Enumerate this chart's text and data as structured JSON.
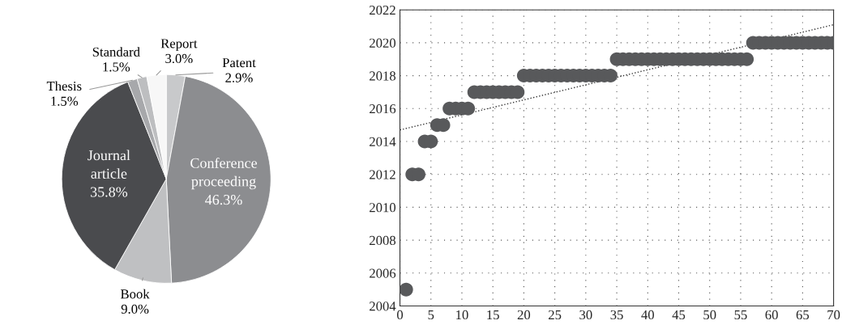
{
  "chart_data": [
    {
      "type": "pie",
      "categories": [
        "Patent",
        "Conference proceeding",
        "Book",
        "Journal article",
        "Thesis",
        "Standard",
        "Report"
      ],
      "values": [
        2.9,
        46.3,
        9.0,
        35.8,
        1.5,
        1.5,
        3.0
      ],
      "value_labels": [
        "2.9%",
        "46.3%",
        "9.0%",
        "35.8%",
        "1.5%",
        "1.5%",
        "3.0%"
      ],
      "colors": [
        "#c8c9cb",
        "#8c8d90",
        "#bfc0c2",
        "#4a4b4e",
        "#a7a8ab",
        "#bdbec0",
        "#f7f7f7"
      ]
    },
    {
      "type": "scatter",
      "xlim": [
        0,
        70
      ],
      "ylim": [
        2004,
        2022
      ],
      "xticks": [
        0,
        5,
        10,
        15,
        20,
        25,
        30,
        35,
        40,
        45,
        50,
        55,
        60,
        65,
        70
      ],
      "yticks": [
        2004,
        2006,
        2008,
        2010,
        2012,
        2014,
        2016,
        2018,
        2020,
        2022
      ],
      "grid": true,
      "series": [
        {
          "type": "scatter",
          "color": "#58595b",
          "marker": "circle",
          "x": [
            1,
            2,
            3,
            4,
            5,
            6,
            7,
            8,
            9,
            10,
            11,
            12,
            13,
            14,
            15,
            16,
            17,
            18,
            19,
            20,
            21,
            22,
            23,
            24,
            25,
            26,
            27,
            28,
            29,
            30,
            31,
            32,
            33,
            34,
            35,
            36,
            37,
            38,
            39,
            40,
            41,
            42,
            43,
            44,
            45,
            46,
            47,
            48,
            49,
            50,
            51,
            52,
            53,
            54,
            55,
            56,
            57,
            58,
            59,
            60,
            61,
            62,
            63,
            64,
            65,
            66,
            67,
            68,
            69,
            70
          ],
          "values": [
            2005,
            2012,
            2012,
            2014,
            2014,
            2015,
            2015,
            2016,
            2016,
            2016,
            2016,
            2017,
            2017,
            2017,
            2017,
            2017,
            2017,
            2017,
            2017,
            2018,
            2018,
            2018,
            2018,
            2018,
            2018,
            2018,
            2018,
            2018,
            2018,
            2018,
            2018,
            2018,
            2018,
            2018,
            2019,
            2019,
            2019,
            2019,
            2019,
            2019,
            2019,
            2019,
            2019,
            2019,
            2019,
            2019,
            2019,
            2019,
            2019,
            2019,
            2019,
            2019,
            2019,
            2019,
            2019,
            2019,
            2020,
            2020,
            2020,
            2020,
            2020,
            2020,
            2020,
            2020,
            2020,
            2020,
            2020,
            2020,
            2020,
            2020
          ]
        },
        {
          "type": "line",
          "color": "#333333",
          "line_style": "dotted",
          "x": [
            0,
            70
          ],
          "values": [
            2014.7,
            2021.1
          ]
        }
      ]
    }
  ]
}
